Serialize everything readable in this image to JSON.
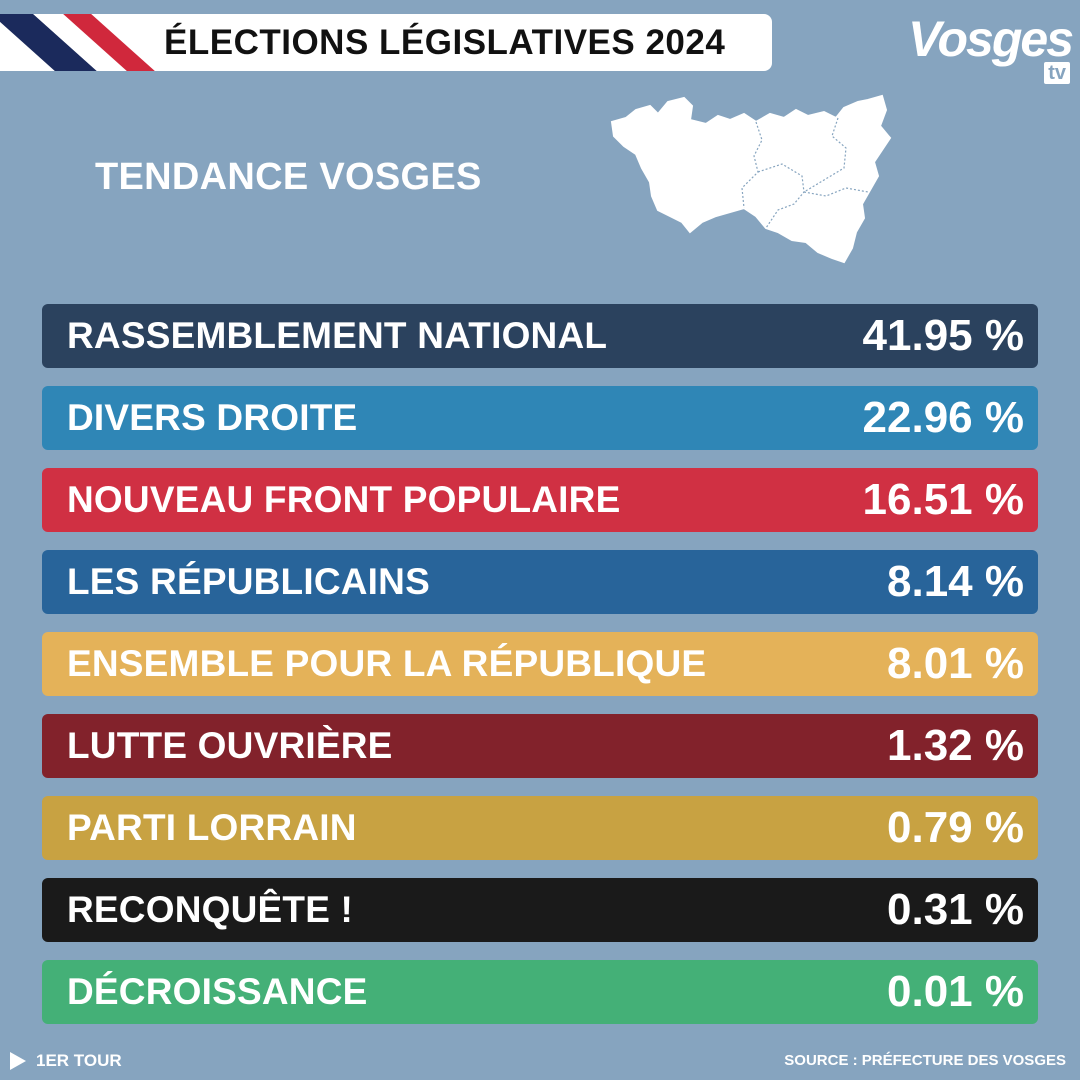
{
  "header": {
    "title": "ÉLECTIONS LÉGISLATIVES 2024"
  },
  "logo": {
    "name": "Vosges",
    "suffix": "tv"
  },
  "subtitle": "TENDANCE VOSGES",
  "chart_data": {
    "type": "table",
    "title": "TENDANCE VOSGES",
    "unit": "%",
    "rows": [
      {
        "label": "RASSEMBLEMENT NATIONAL",
        "value": 41.95,
        "display": "41.95 %",
        "color": "#2b425e"
      },
      {
        "label": "DIVERS DROITE",
        "value": 22.96,
        "display": "22.96 %",
        "color": "#2f86b6"
      },
      {
        "label": "NOUVEAU FRONT POPULAIRE",
        "value": 16.51,
        "display": "16.51 %",
        "color": "#d03043"
      },
      {
        "label": "LES RÉPUBLICAINS",
        "value": 8.14,
        "display": "8.14 %",
        "color": "#28649a"
      },
      {
        "label": "ENSEMBLE POUR LA RÉPUBLIQUE",
        "value": 8.01,
        "display": "8.01 %",
        "color": "#e4b259"
      },
      {
        "label": "LUTTE OUVRIÈRE",
        "value": 1.32,
        "display": "1.32 %",
        "color": "#82222b"
      },
      {
        "label": "PARTI LORRAIN",
        "value": 0.79,
        "display": "0.79 %",
        "color": "#c8a242"
      },
      {
        "label": "RECONQUÊTE !",
        "value": 0.31,
        "display": "0.31 %",
        "color": "#1a1a1a"
      },
      {
        "label": "DÉCROISSANCE",
        "value": 0.01,
        "display": "0.01 %",
        "color": "#44b077"
      }
    ]
  },
  "footer": {
    "round": "1ER TOUR",
    "source": "SOURCE : PRÉFECTURE DES VOSGES"
  }
}
